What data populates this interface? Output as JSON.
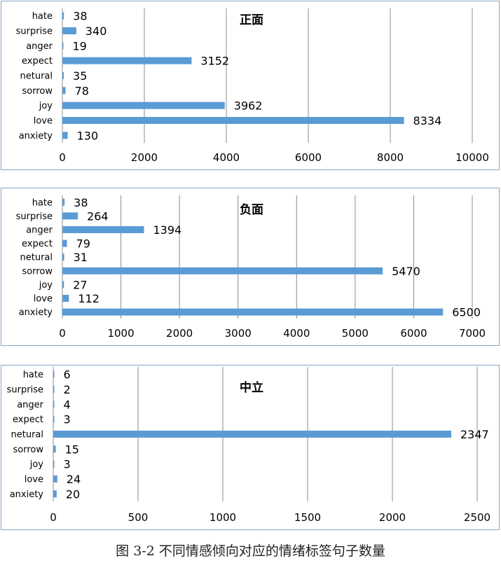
{
  "caption": "图 3-2  不同情感倾向对应的情绪标签句子数量",
  "chart_data": [
    {
      "type": "bar",
      "orientation": "horizontal",
      "title": "正面",
      "categories": [
        "hate",
        "surprise",
        "anger",
        "expect",
        "netural",
        "sorrow",
        "joy",
        "love",
        "anxiety"
      ],
      "values": [
        38,
        340,
        19,
        3152,
        35,
        78,
        3962,
        8334,
        130
      ],
      "xlim": [
        0,
        10000
      ],
      "xticks": [
        0,
        2000,
        4000,
        6000,
        8000,
        10000
      ],
      "grid": true,
      "bar_color": "#5b9bd5"
    },
    {
      "type": "bar",
      "orientation": "horizontal",
      "title": "负面",
      "categories": [
        "hate",
        "surprise",
        "anger",
        "expect",
        "netural",
        "sorrow",
        "joy",
        "love",
        "anxiety"
      ],
      "values": [
        38,
        264,
        1394,
        79,
        31,
        5470,
        27,
        112,
        6500
      ],
      "xlim": [
        0,
        7000
      ],
      "xticks": [
        0,
        1000,
        2000,
        3000,
        4000,
        5000,
        6000,
        7000
      ],
      "grid": true,
      "bar_color": "#5b9bd5"
    },
    {
      "type": "bar",
      "orientation": "horizontal",
      "title": "中立",
      "categories": [
        "hate",
        "surprise",
        "anger",
        "expect",
        "netural",
        "sorrow",
        "joy",
        "love",
        "anxiety"
      ],
      "values": [
        6,
        2,
        4,
        3,
        2347,
        15,
        3,
        24,
        20
      ],
      "xlim": [
        0,
        2500
      ],
      "xticks": [
        0,
        500,
        1000,
        1500,
        2000,
        2500
      ],
      "grid": true,
      "bar_color": "#5b9bd5"
    }
  ]
}
